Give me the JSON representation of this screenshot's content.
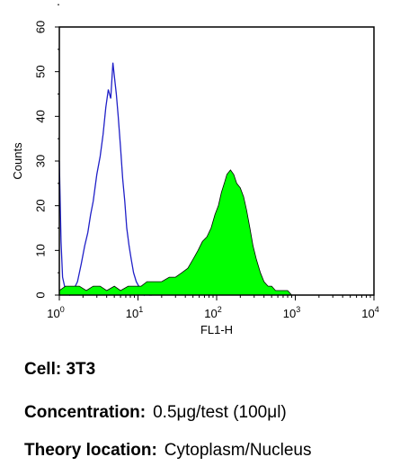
{
  "chart_data": {
    "type": "area",
    "title": "",
    "xlabel": "FL1-H",
    "ylabel": "Counts",
    "x_scale": "log",
    "xlim": [
      1,
      10000
    ],
    "ylim": [
      0,
      60
    ],
    "x_ticks": [
      {
        "value": 1,
        "base": "10",
        "exp": "0"
      },
      {
        "value": 10,
        "base": "10",
        "exp": "1"
      },
      {
        "value": 100,
        "base": "10",
        "exp": "2"
      },
      {
        "value": 1000,
        "base": "10",
        "exp": "3"
      },
      {
        "value": 10000,
        "base": "10",
        "exp": "4"
      }
    ],
    "y_ticks": [
      "0",
      "10",
      "20",
      "30",
      "40",
      "50",
      "60"
    ],
    "grid": false,
    "series": [
      {
        "style": "outline",
        "color": "#2020c8",
        "x": [
          1,
          1.05,
          1.1,
          1.2,
          1.35,
          1.5,
          1.7,
          1.9,
          2.1,
          2.3,
          2.5,
          2.7,
          3.0,
          3.3,
          3.6,
          3.9,
          4.2,
          4.5,
          4.8,
          5.0,
          5.3,
          5.6,
          6.0,
          6.4,
          6.8,
          7.2,
          7.7,
          8.2,
          8.8,
          9.5,
          10.2,
          11.0,
          12.0,
          13.0,
          14.0,
          15.0
        ],
        "y": [
          30,
          12,
          4,
          1,
          0,
          1,
          3,
          7,
          11,
          14,
          18,
          21,
          27,
          31,
          36,
          42,
          46,
          44,
          52,
          49,
          45,
          40,
          33,
          26,
          21,
          15,
          11,
          8,
          5,
          3,
          2,
          1,
          0,
          1,
          0,
          0
        ]
      },
      {
        "style": "filled",
        "color": "#00ff00",
        "x": [
          1,
          1.2,
          1.5,
          1.8,
          2.2,
          2.7,
          3.3,
          4.0,
          5.0,
          6.0,
          7.5,
          9.0,
          11,
          13,
          16,
          20,
          25,
          30,
          36,
          43,
          50,
          58,
          66,
          75,
          85,
          95,
          105,
          115,
          125,
          135,
          150,
          165,
          180,
          200,
          220,
          240,
          265,
          290,
          320,
          360,
          400,
          450,
          500,
          560,
          630,
          700,
          800,
          900,
          1000
        ],
        "y": [
          1,
          2,
          2,
          2,
          1,
          2,
          2,
          1,
          2,
          1,
          2,
          2,
          2,
          3,
          3,
          3,
          4,
          4,
          5,
          6,
          8,
          10,
          12,
          13,
          15,
          18,
          20,
          23,
          25,
          27,
          28,
          27,
          25,
          24,
          22,
          19,
          15,
          11,
          8,
          5,
          3,
          2,
          2,
          1,
          1,
          1,
          1,
          0,
          0
        ]
      }
    ]
  },
  "captions": {
    "cell_key": "Cell:",
    "cell_value": "3T3",
    "concentration_key": "Concentration:",
    "concentration_value": "0.5μg/test (100μl)",
    "location_key": "Theory location:",
    "location_value": "Cytoplasm/Nucleus"
  }
}
